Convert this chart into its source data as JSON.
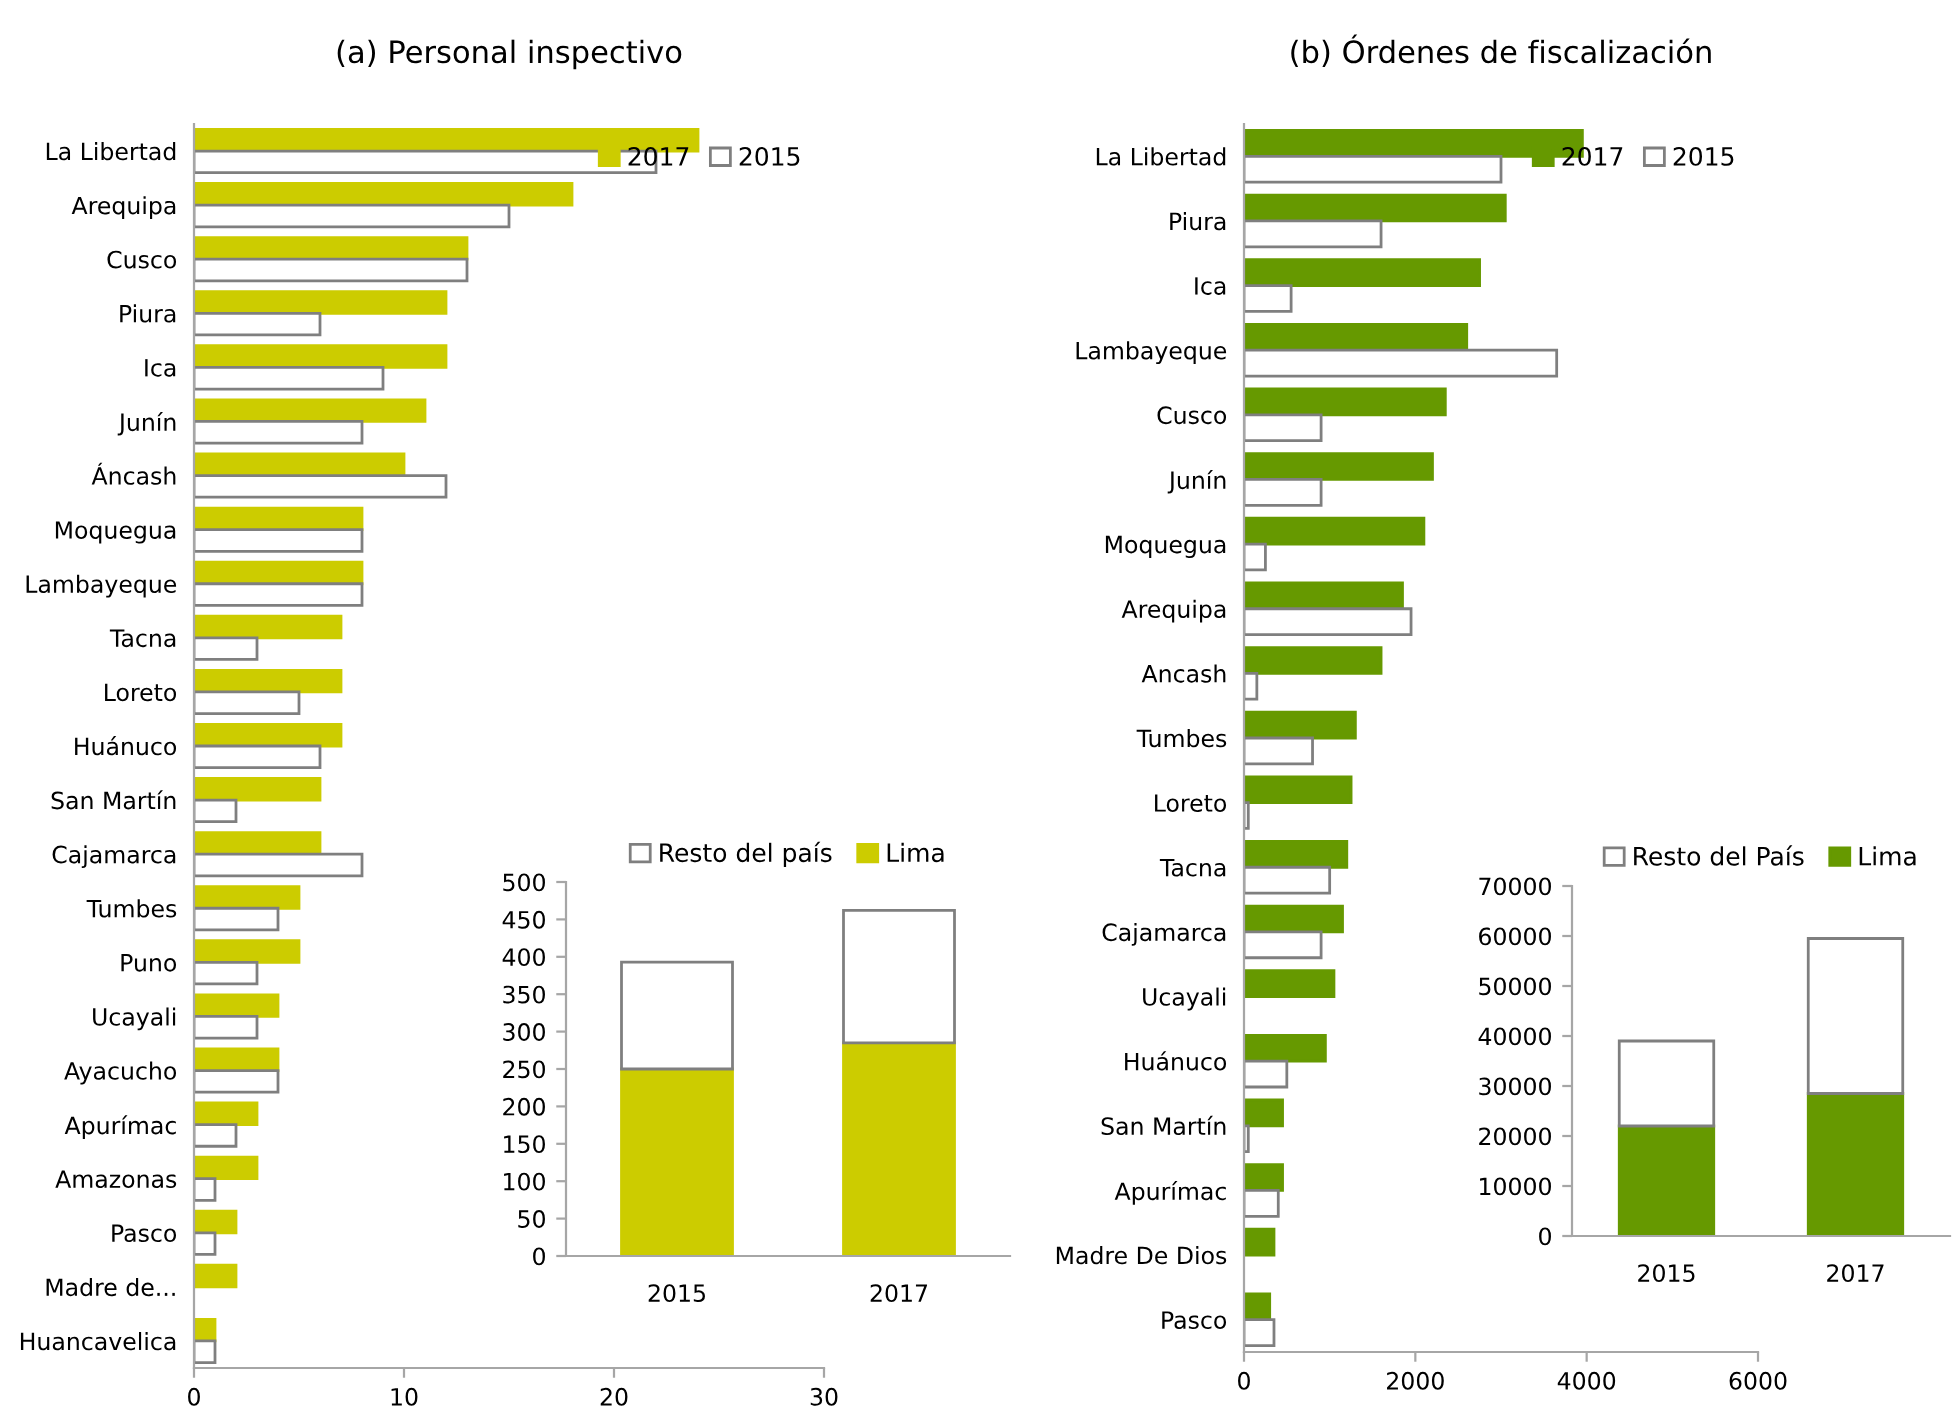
{
  "chart_data": [
    {
      "type": "bar",
      "orientation": "horizontal",
      "title": "(a) Personal inspectivo",
      "categories": [
        "La Libertad",
        "Arequipa",
        "Cusco",
        "Piura",
        "Ica",
        "Junín",
        "Áncash",
        "Moquegua",
        "Lambayeque",
        "Tacna",
        "Loreto",
        "Huánuco",
        "San Martín",
        "Cajamarca",
        "Tumbes",
        "Puno",
        "Ucayali",
        "Ayacucho",
        "Apurímac",
        "Amazonas",
        "Pasco",
        "Madre de...",
        "Huancavelica"
      ],
      "series": [
        {
          "name": "2017",
          "color": "#cccc00",
          "values": [
            24,
            18,
            13,
            12,
            12,
            11,
            10,
            8,
            8,
            7,
            7,
            7,
            6,
            6,
            5,
            5,
            4,
            4,
            3,
            3,
            2,
            2,
            1
          ]
        },
        {
          "name": "2015",
          "color": "#ffffff",
          "values": [
            22,
            15,
            13,
            6,
            9,
            8,
            12,
            8,
            8,
            3,
            5,
            6,
            2,
            8,
            4,
            3,
            3,
            4,
            2,
            1,
            1,
            null,
            1
          ]
        }
      ],
      "xlim": [
        0,
        30
      ],
      "xticks": [
        0,
        10,
        20,
        30
      ],
      "legend": "top right",
      "grid": false
    },
    {
      "type": "bar",
      "stacked": true,
      "categories": [
        "2015",
        "2017"
      ],
      "series": [
        {
          "name": "Lima",
          "color": "#cccc00",
          "values": [
            250,
            285
          ]
        },
        {
          "name": "Resto del país",
          "color": "#ffffff",
          "values": [
            143,
            177
          ]
        }
      ],
      "ylim": [
        0,
        500
      ],
      "yticks": [
        0,
        50,
        100,
        150,
        200,
        250,
        300,
        350,
        400,
        450,
        500
      ],
      "legend": "top",
      "grid": false
    },
    {
      "type": "bar",
      "orientation": "horizontal",
      "title": "(b) Órdenes de fiscalización",
      "categories": [
        "La Libertad",
        "Piura",
        "Ica",
        "Lambayeque",
        "Cusco",
        "Junín",
        "Moquegua",
        "Arequipa",
        "Ancash",
        "Tumbes",
        "Loreto",
        "Tacna",
        "Cajamarca",
        "Ucayali",
        "Huánuco",
        "San Martín",
        "Apurímac",
        "Madre De Dios",
        "Pasco"
      ],
      "series": [
        {
          "name": "2017",
          "color": "#669900",
          "values": [
            3950,
            3050,
            2750,
            2600,
            2350,
            2200,
            2100,
            1850,
            1600,
            1300,
            1250,
            1200,
            1150,
            1050,
            950,
            450,
            450,
            350,
            300
          ]
        },
        {
          "name": "2015",
          "color": "#ffffff",
          "values": [
            3000,
            1600,
            550,
            3650,
            900,
            900,
            250,
            1950,
            150,
            800,
            50,
            1000,
            900,
            null,
            500,
            50,
            400,
            null,
            350
          ]
        }
      ],
      "xlim": [
        0,
        6000
      ],
      "xticks": [
        0,
        2000,
        4000,
        6000
      ],
      "legend": "top right",
      "grid": false
    },
    {
      "type": "bar",
      "stacked": true,
      "categories": [
        "2015",
        "2017"
      ],
      "series": [
        {
          "name": "Lima",
          "color": "#669900",
          "values": [
            22000,
            28500
          ]
        },
        {
          "name": "Resto del País",
          "color": "#ffffff",
          "values": [
            17000,
            31000
          ]
        }
      ],
      "ylim": [
        0,
        70000
      ],
      "yticks": [
        0,
        10000,
        20000,
        30000,
        40000,
        50000,
        60000,
        70000
      ],
      "legend": "top",
      "grid": false
    }
  ]
}
